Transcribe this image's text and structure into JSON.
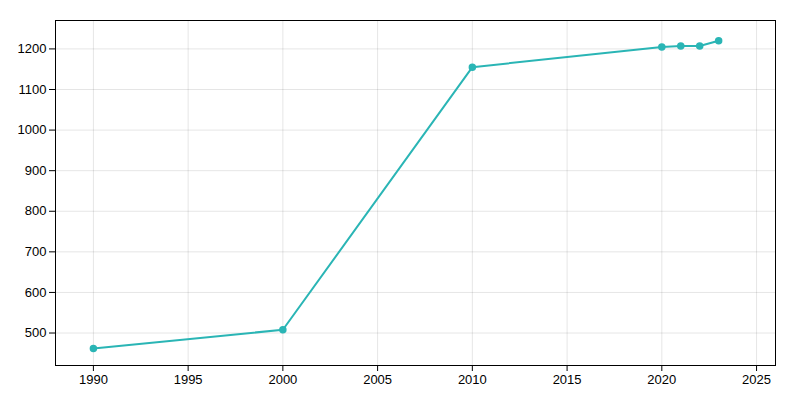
{
  "chart_data": {
    "type": "line",
    "x": [
      1990,
      2000,
      2010,
      2020,
      2021,
      2022,
      2023
    ],
    "values": [
      462,
      508,
      1155,
      1205,
      1207,
      1207,
      1220
    ],
    "color": "#2ab5b5",
    "marker": "circle",
    "xlim": [
      1988,
      2026
    ],
    "ylim": [
      420,
      1270
    ],
    "xticks": [
      1990,
      1995,
      2000,
      2005,
      2010,
      2015,
      2020,
      2025
    ],
    "yticks": [
      500,
      600,
      700,
      800,
      900,
      1000,
      1100,
      1200
    ],
    "grid": true
  }
}
